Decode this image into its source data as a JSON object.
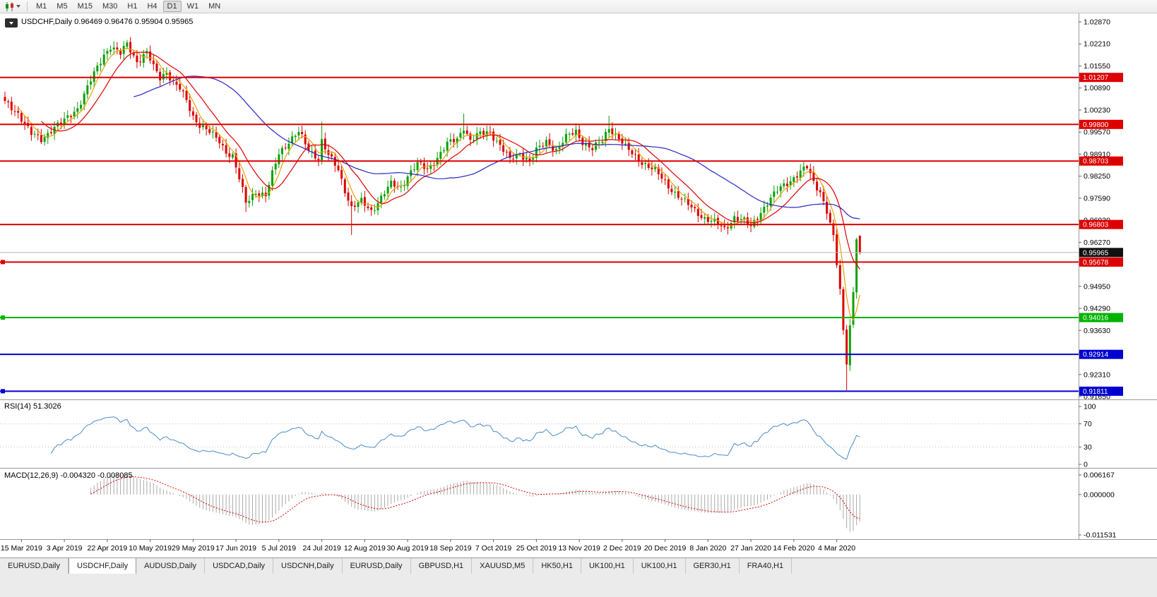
{
  "toolbar": {
    "chart_type_icon": "candlestick-chart-icon",
    "timeframes": [
      "M1",
      "M5",
      "M15",
      "M30",
      "H1",
      "H4",
      "D1",
      "W1",
      "MN"
    ],
    "active_timeframe": "D1"
  },
  "chart": {
    "title": "USDCHF,Daily 0.96469 0.96476 0.95904 0.95965"
  },
  "rsi_panel": {
    "label": "RSI(14) 51.3026"
  },
  "macd_panel": {
    "label": "MACD(12,26,9) -0.004320 -0.008085"
  },
  "tabs": {
    "items": [
      "EURUSD,Daily",
      "USDCHF,Daily",
      "AUDUSD,Daily",
      "USDCAD,Daily",
      "USDCNH,Daily",
      "EURUSD,Daily",
      "GBPUSD,H1",
      "XAUUSD,M5",
      "HK50,H1",
      "UK100,H1",
      "UK100,H1",
      "GER30,H1",
      "FRA40,H1"
    ],
    "active_index": 1
  },
  "chart_data": {
    "type": "candlestick",
    "symbol": "USDCHF",
    "timeframe": "Daily",
    "last_ohlc": {
      "open": 0.96469,
      "high": 0.96476,
      "low": 0.95904,
      "close": 0.95965
    },
    "price_axis": {
      "top_price": 1.0287,
      "bottom_price": 0.9165,
      "labels": [
        "1.02870",
        "1.02210",
        "1.01550",
        "1.00890",
        "1.00230",
        "0.99570",
        "0.98910",
        "0.98250",
        "0.97590",
        "0.96930",
        "0.96270",
        "0.95610",
        "0.94950",
        "0.94290",
        "0.93630",
        "0.92970",
        "0.92310",
        "0.91650"
      ]
    },
    "date_labels": [
      "15 Mar 2019",
      "3 Apr 2019",
      "22 Apr 2019",
      "10 May 2019",
      "29 May 2019",
      "17 Jun 2019",
      "5 Jul 2019",
      "24 Jul 2019",
      "12 Aug 2019",
      "30 Aug 2019",
      "18 Sep 2019",
      "7 Oct 2019",
      "25 Oct 2019",
      "13 Nov 2019",
      "2 Dec 2019",
      "20 Dec 2019",
      "8 Jan 2020",
      "27 Jan 2020",
      "14 Feb 2020",
      "4 Mar 2020"
    ],
    "first_label_bar": 5,
    "bars_per_label": 13,
    "bar_count": 260,
    "colors": {
      "up": "#0aa10a",
      "down": "#dd0000",
      "background": "#ffffff",
      "axis": "#9a9a9a"
    },
    "close_anchors": [
      [
        0,
        1.0045
      ],
      [
        4,
        1.0015
      ],
      [
        8,
        0.995
      ],
      [
        11,
        0.9935
      ],
      [
        14,
        0.9965
      ],
      [
        18,
        0.999
      ],
      [
        22,
        1.003
      ],
      [
        25,
        1.009
      ],
      [
        28,
        1.015
      ],
      [
        30,
        1.019
      ],
      [
        32,
        1.0215
      ],
      [
        35,
        1.019
      ],
      [
        37,
        1.022
      ],
      [
        40,
        1.017
      ],
      [
        43,
        1.0195
      ],
      [
        45,
        1.015
      ],
      [
        47,
        1.012
      ],
      [
        49,
        1.014
      ],
      [
        51,
        1.0105
      ],
      [
        53,
        1.0085
      ],
      [
        55,
        1.005
      ],
      [
        57,
        1.0005
      ],
      [
        59,
        0.998
      ],
      [
        62,
        0.9955
      ],
      [
        65,
        0.993
      ],
      [
        67,
        0.99
      ],
      [
        69,
        0.9885
      ],
      [
        71,
        0.9815
      ],
      [
        73,
        0.9745
      ],
      [
        76,
        0.978
      ],
      [
        79,
        0.9765
      ],
      [
        81,
        0.983
      ],
      [
        83,
        0.9895
      ],
      [
        86,
        0.993
      ],
      [
        89,
        0.9955
      ],
      [
        92,
        0.9905
      ],
      [
        95,
        0.988
      ],
      [
        96,
        0.993
      ],
      [
        98,
        0.9885
      ],
      [
        101,
        0.9845
      ],
      [
        103,
        0.9785
      ],
      [
        105,
        0.973
      ],
      [
        108,
        0.9748
      ],
      [
        111,
        0.9722
      ],
      [
        114,
        0.9762
      ],
      [
        117,
        0.98
      ],
      [
        120,
        0.9792
      ],
      [
        122,
        0.9828
      ],
      [
        125,
        0.986
      ],
      [
        128,
        0.9846
      ],
      [
        131,
        0.9882
      ],
      [
        134,
        0.992
      ],
      [
        137,
        0.9936
      ],
      [
        139,
        0.9974
      ],
      [
        141,
        0.9932
      ],
      [
        144,
        0.995
      ],
      [
        147,
        0.9958
      ],
      [
        150,
        0.9918
      ],
      [
        153,
        0.9872
      ],
      [
        156,
        0.9894
      ],
      [
        159,
        0.9872
      ],
      [
        161,
        0.99
      ],
      [
        164,
        0.9928
      ],
      [
        167,
        0.9906
      ],
      [
        170,
        0.994
      ],
      [
        173,
        0.9958
      ],
      [
        175,
        0.993
      ],
      [
        178,
        0.9906
      ],
      [
        181,
        0.993
      ],
      [
        183,
        0.9972
      ],
      [
        186,
        0.994
      ],
      [
        188,
        0.991
      ],
      [
        191,
        0.9882
      ],
      [
        194,
        0.9862
      ],
      [
        197,
        0.984
      ],
      [
        200,
        0.9806
      ],
      [
        203,
        0.9776
      ],
      [
        206,
        0.9746
      ],
      [
        209,
        0.9722
      ],
      [
        212,
        0.97
      ],
      [
        215,
        0.9686
      ],
      [
        218,
        0.9666
      ],
      [
        221,
        0.9704
      ],
      [
        224,
        0.969
      ],
      [
        226,
        0.9672
      ],
      [
        229,
        0.972
      ],
      [
        232,
        0.9758
      ],
      [
        235,
        0.979
      ],
      [
        238,
        0.9814
      ],
      [
        241,
        0.9838
      ],
      [
        243,
        0.985
      ],
      [
        245,
        0.9806
      ],
      [
        247,
        0.978
      ],
      [
        249,
        0.9722
      ],
      [
        251,
        0.964
      ],
      [
        252,
        0.956
      ],
      [
        253,
        0.948
      ],
      [
        254,
        0.936
      ],
      [
        255,
        0.9272
      ],
      [
        256,
        0.938
      ],
      [
        257,
        0.948
      ],
      [
        258,
        0.9645
      ],
      [
        259,
        0.95965
      ]
    ],
    "bar_overrides": {
      "11": {
        "l": 0.9921
      },
      "37": {
        "h": 1.0233
      },
      "73": {
        "l": 0.9718
      },
      "96": {
        "h": 0.9988
      },
      "105": {
        "l": 0.9649
      },
      "139": {
        "h": 1.0012
      },
      "183": {
        "h": 1.0006
      },
      "243": {
        "h": 0.9859
      },
      "255": {
        "l": 0.9184
      },
      "259": {
        "o": 0.96469,
        "h": 0.96476,
        "l": 0.95904,
        "c": 0.95965
      }
    },
    "moving_averages": [
      {
        "name": "fast-ma",
        "period": 5,
        "color": "#e8a200"
      },
      {
        "name": "medium-ma",
        "period": 12,
        "color": "#dd0000"
      },
      {
        "name": "slow-ma",
        "period": 40,
        "color": "#2727c4"
      }
    ],
    "hlines": [
      {
        "price": 1.01207,
        "label": "1.01207",
        "color": "#dd0000",
        "left_marker": false
      },
      {
        "price": 0.998,
        "label": "0.99800",
        "color": "#dd0000",
        "left_marker": false
      },
      {
        "price": 0.98703,
        "label": "0.98703",
        "color": "#dd0000",
        "left_marker": false
      },
      {
        "price": 0.96803,
        "label": "0.96803",
        "color": "#dd0000",
        "left_marker": false
      },
      {
        "price": 0.95678,
        "label": "0.95678",
        "color": "#dd0000",
        "left_marker": true
      },
      {
        "price": 0.94016,
        "label": "0.94016",
        "color": "#00b400",
        "left_marker": true
      },
      {
        "price": 0.92914,
        "label": "0.92914",
        "color": "#0000d0",
        "left_marker": false
      },
      {
        "price": 0.91811,
        "label": "0.91811",
        "color": "#0000d0",
        "left_marker": true
      }
    ],
    "current_price": {
      "value": 0.95965,
      "label": "0.95965",
      "line_color": "#b8b8b8",
      "badge_color": "#111111"
    },
    "indicators": [
      {
        "name": "RSI",
        "params": "14",
        "current": 51.3026,
        "range": [
          0,
          100
        ],
        "axis_labels": [
          "100",
          "70",
          "30",
          "0"
        ],
        "levels": [
          70,
          30
        ],
        "line_color": "#4a8bc8"
      },
      {
        "name": "MACD",
        "params": "12,26,9",
        "main": -0.00432,
        "signal": -0.008085,
        "axis_labels": [
          "0.006167",
          "0.000000",
          "-0.011531"
        ],
        "max": 0.006167,
        "min": -0.011531,
        "histogram_color": "#a9a9a9",
        "signal_color": "#dd0000"
      }
    ]
  }
}
